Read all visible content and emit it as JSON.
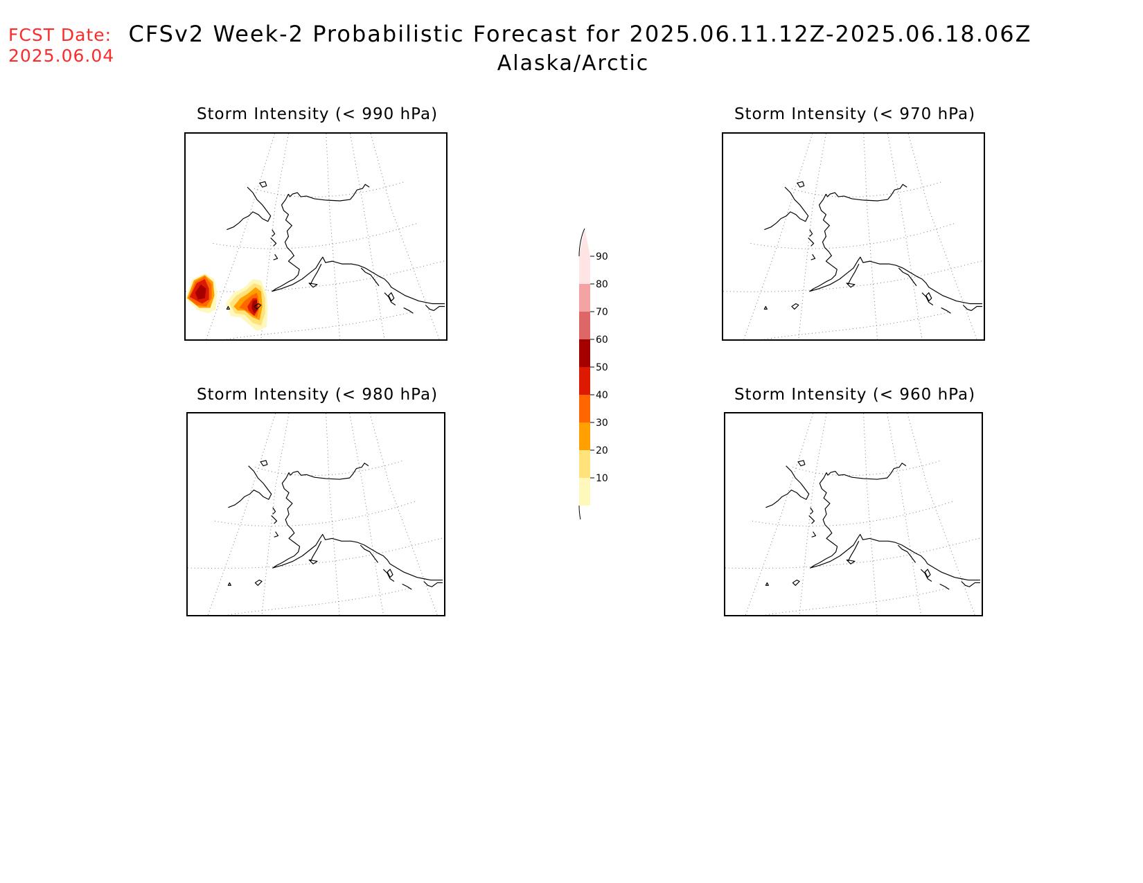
{
  "fcst_date": {
    "label": "FCST Date:",
    "value": "2025.06.04",
    "color": "#ff2a2a"
  },
  "title": {
    "line1": "CFSv2 Week-2 Probabilistic Forecast for 2025.06.11.12Z-2025.06.18.06Z",
    "line2": "Alaska/Arctic"
  },
  "panels": [
    {
      "title": "Storm Intensity (< 990 hPa)",
      "has_shading": true
    },
    {
      "title": "Storm Intensity (< 970 hPa)",
      "has_shading": false
    },
    {
      "title": "Storm Intensity (< 980 hPa)",
      "has_shading": false
    },
    {
      "title": "Storm Intensity (< 960 hPa)",
      "has_shading": false
    }
  ],
  "colorbar": {
    "levels": [
      "90",
      "80",
      "70",
      "60",
      "50",
      "40",
      "30",
      "20",
      "10"
    ],
    "colors": [
      "#ffe4e4",
      "#f3a3a3",
      "#dd6666",
      "#a50000",
      "#dd1a00",
      "#ff6600",
      "#ffa000",
      "#ffe27a",
      "#fff8bd"
    ]
  }
}
